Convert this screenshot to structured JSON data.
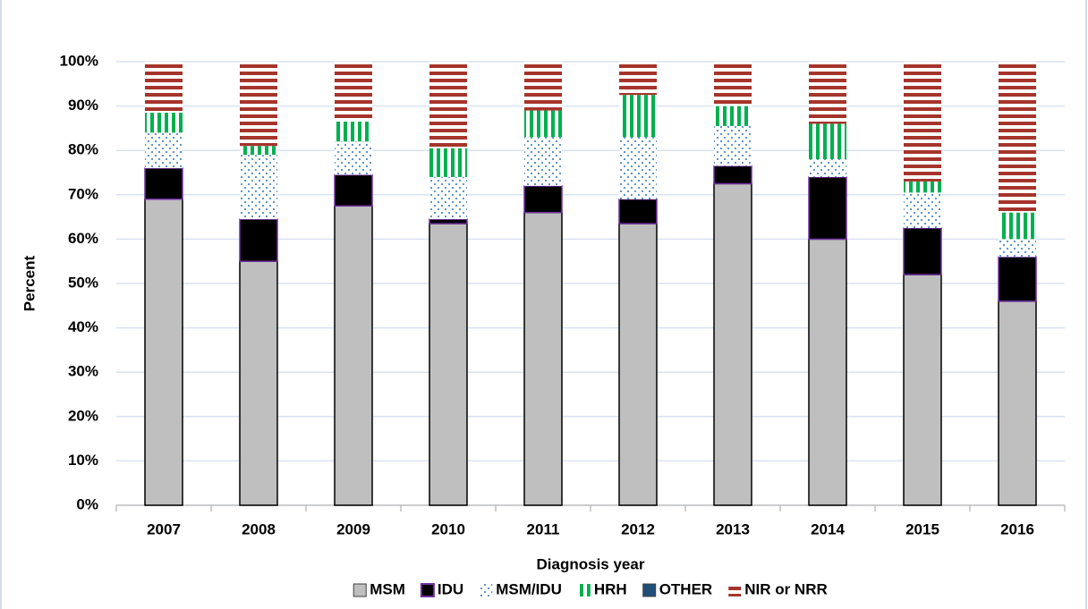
{
  "chart_data": {
    "type": "stacked_bar",
    "x_label": "Diagnosis year",
    "y_label": "Percent",
    "categories": [
      "2007",
      "2008",
      "2009",
      "2010",
      "2011",
      "2012",
      "2013",
      "2014",
      "2015",
      "2016"
    ],
    "series": [
      {
        "name": "MSM",
        "color": "#bfbfbf",
        "pattern": "solid",
        "values": [
          69,
          55,
          67.5,
          63.5,
          66,
          63.5,
          72.5,
          60,
          52,
          46
        ]
      },
      {
        "name": "IDU",
        "color": "#000000",
        "pattern": "solid",
        "values": [
          7,
          9.5,
          7,
          1,
          6,
          5.5,
          4,
          14,
          10.5,
          10
        ]
      },
      {
        "name": "MSM/IDU",
        "color": "#2e75b6",
        "pattern": "dots",
        "values": [
          8,
          14.5,
          7.5,
          9.5,
          11,
          14,
          9,
          4,
          8,
          4
        ]
      },
      {
        "name": "HRH",
        "color": "#00b050",
        "pattern": "vertical",
        "values": [
          4.5,
          2,
          4.5,
          6.5,
          6,
          9.5,
          4.5,
          8,
          2.5,
          6
        ]
      },
      {
        "name": "OTHER",
        "color": "#1f4e79",
        "pattern": "solid",
        "values": [
          0,
          0,
          0,
          0,
          0,
          0,
          0,
          0,
          0,
          0
        ]
      },
      {
        "name": "NIR or NRR",
        "color": "#a5342b",
        "pattern": "horizontal",
        "values": [
          11.5,
          19,
          13.5,
          19.5,
          11,
          7.5,
          10,
          14,
          27,
          34
        ]
      }
    ],
    "ylim": [
      0,
      100
    ],
    "yticks": [
      {
        "value": 0,
        "label": "0%"
      },
      {
        "value": 10,
        "label": "10%"
      },
      {
        "value": 20,
        "label": "20%"
      },
      {
        "value": 30,
        "label": "30%"
      },
      {
        "value": 40,
        "label": "40%"
      },
      {
        "value": 50,
        "label": "50%"
      },
      {
        "value": 60,
        "label": "60%"
      },
      {
        "value": 70,
        "label": "70%"
      },
      {
        "value": 80,
        "label": "80%"
      },
      {
        "value": 90,
        "label": "90%"
      },
      {
        "value": 100,
        "label": "100%"
      }
    ],
    "grid": true,
    "legend": "bottom"
  }
}
